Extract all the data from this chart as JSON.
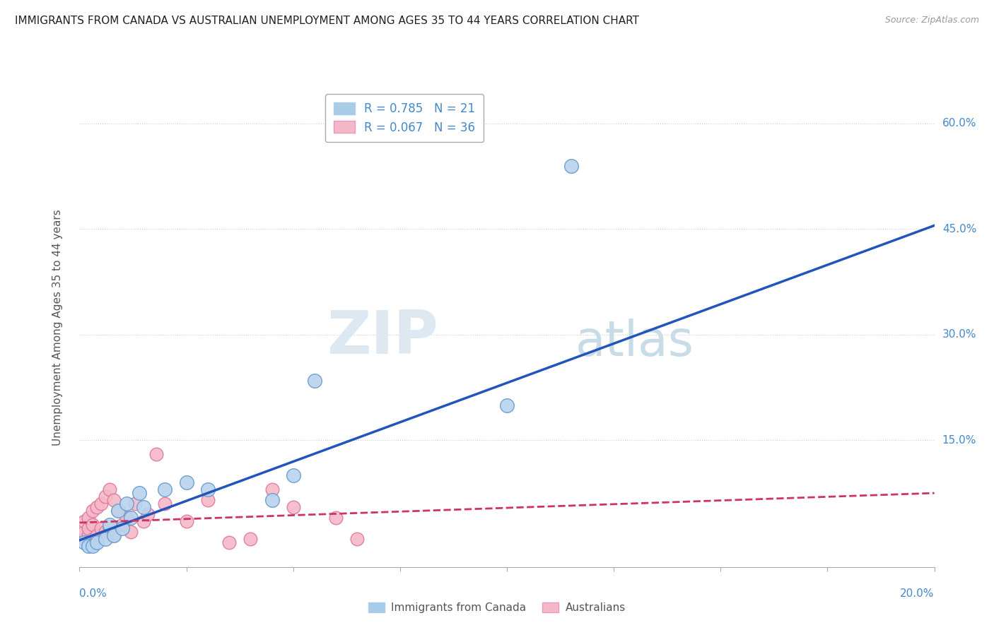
{
  "title": "IMMIGRANTS FROM CANADA VS AUSTRALIAN UNEMPLOYMENT AMONG AGES 35 TO 44 YEARS CORRELATION CHART",
  "source": "Source: ZipAtlas.com",
  "ylabel": "Unemployment Among Ages 35 to 44 years",
  "ytick_labels": [
    "15.0%",
    "30.0%",
    "45.0%",
    "60.0%"
  ],
  "ytick_values": [
    0.15,
    0.3,
    0.45,
    0.6
  ],
  "xlim": [
    0.0,
    0.2
  ],
  "ylim": [
    -0.03,
    0.65
  ],
  "legend_label_1": "R = 0.785   N = 21",
  "legend_label_2": "R = 0.067   N = 36",
  "legend_color_1": "#a8cce8",
  "legend_color_2": "#f4b8c8",
  "watermark_zip": "ZIP",
  "watermark_atlas": "atlas",
  "canada_scatter_x": [
    0.001,
    0.002,
    0.003,
    0.004,
    0.006,
    0.007,
    0.008,
    0.009,
    0.01,
    0.011,
    0.012,
    0.014,
    0.015,
    0.02,
    0.025,
    0.03,
    0.045,
    0.05,
    0.055,
    0.1,
    0.115
  ],
  "canada_scatter_y": [
    0.005,
    0.0,
    0.0,
    0.005,
    0.01,
    0.03,
    0.015,
    0.05,
    0.025,
    0.06,
    0.04,
    0.075,
    0.055,
    0.08,
    0.09,
    0.08,
    0.065,
    0.1,
    0.235,
    0.2,
    0.54
  ],
  "australia_scatter_x": [
    0.001,
    0.001,
    0.001,
    0.002,
    0.002,
    0.002,
    0.003,
    0.003,
    0.003,
    0.004,
    0.004,
    0.005,
    0.005,
    0.006,
    0.006,
    0.007,
    0.007,
    0.008,
    0.008,
    0.009,
    0.01,
    0.011,
    0.012,
    0.013,
    0.015,
    0.016,
    0.018,
    0.02,
    0.025,
    0.03,
    0.035,
    0.04,
    0.045,
    0.05,
    0.06,
    0.065
  ],
  "australia_scatter_y": [
    0.01,
    0.02,
    0.035,
    0.015,
    0.025,
    0.04,
    0.01,
    0.03,
    0.05,
    0.015,
    0.055,
    0.025,
    0.06,
    0.02,
    0.07,
    0.025,
    0.08,
    0.015,
    0.065,
    0.05,
    0.03,
    0.04,
    0.02,
    0.06,
    0.035,
    0.045,
    0.13,
    0.06,
    0.035,
    0.065,
    0.005,
    0.01,
    0.08,
    0.055,
    0.04,
    0.01
  ],
  "canada_line_x": [
    0.0,
    0.2
  ],
  "canada_line_y": [
    0.008,
    0.455
  ],
  "australia_line_x": [
    0.0,
    0.2
  ],
  "australia_line_y": [
    0.033,
    0.075
  ],
  "canada_line_color": "#2255bb",
  "australia_line_color": "#cc3366",
  "australia_line_style": "dashed",
  "dot_color_canada": "#b8d4ee",
  "dot_color_australia": "#f4b8c8",
  "dot_edge_canada": "#6699cc",
  "dot_edge_australia": "#dd7799",
  "background_color": "#ffffff",
  "grid_color": "#cccccc",
  "title_color": "#222222",
  "axis_label_color": "#4488cc",
  "source_color": "#999999",
  "bottom_legend_label_1": "Immigrants from Canada",
  "bottom_legend_label_2": "Australians"
}
